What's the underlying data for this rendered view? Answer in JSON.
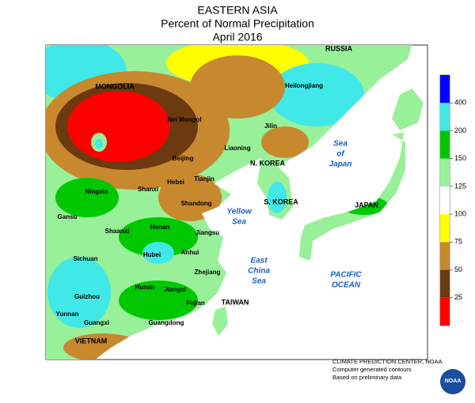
{
  "header": {
    "lines": [
      "EASTERN ASIA",
      "Percent of Normal Precipitation",
      "April 2016"
    ]
  },
  "legend": {
    "ticks": [
      25,
      50,
      75,
      100,
      125,
      150,
      200,
      400
    ],
    "colors": [
      "#ff0000",
      "#6b3a10",
      "#c8882e",
      "#ffff00",
      "#ffffff",
      "#98f098",
      "#00c800",
      "#40e8e8",
      "#0000ff"
    ]
  },
  "countries": [
    "RUSSIA",
    "MONGOLIA",
    "N. KOREA",
    "S. KOREA",
    "JAPAN",
    "TAIWAN",
    "VIETNAM"
  ],
  "provinces": [
    "Heilongjiang",
    "Jilin",
    "Nei Mongol",
    "Liaoning",
    "Beijing",
    "Tianjin",
    "Hebei",
    "Ningxia",
    "Shanxi",
    "Gansu",
    "Shaanxi",
    "Henan",
    "Shandong",
    "Jiangsu",
    "Sichuan",
    "Hubei",
    "Anhui",
    "Zhejiang",
    "Hunan",
    "Jiangxi",
    "Fujian",
    "Guizhou",
    "Yunnan",
    "Guangxi",
    "Guangdong"
  ],
  "seas": [
    [
      "Sea",
      "of",
      "Japan"
    ],
    [
      "Yellow",
      "Sea"
    ],
    [
      "East",
      "China",
      "Sea"
    ],
    [
      "PACIFIC",
      "OCEAN"
    ]
  ],
  "footer": {
    "lines": [
      "CLIMATE PREDICTION CENTER, NOAA",
      "Computer generated contours",
      "Based on preliminary data"
    ],
    "logo": "NOAA"
  }
}
